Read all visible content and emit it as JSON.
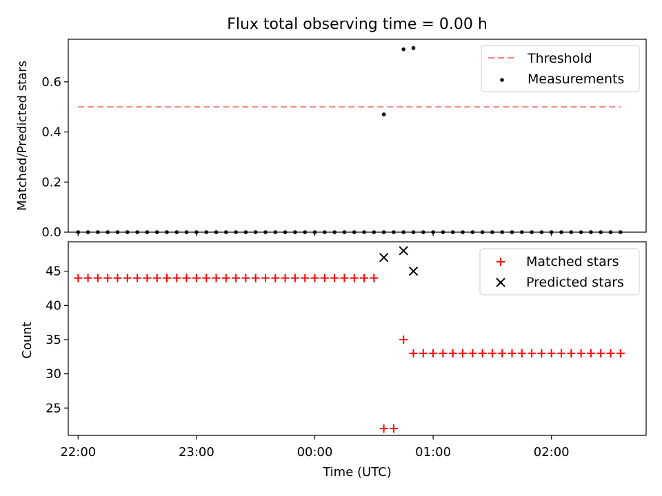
{
  "figure": {
    "title": "Flux total observing time = 0.00 h"
  },
  "chart_data": [
    {
      "type": "scatter",
      "title": "Flux total observing time = 0.00 h",
      "xlabel": "",
      "ylabel": "Matched/Predicted stars",
      "xlim": [
        "21:55",
        "02:48"
      ],
      "ylim": [
        0,
        0.77
      ],
      "yticks": [
        0.0,
        0.2,
        0.4,
        0.6
      ],
      "ytick_labels": [
        "0.0",
        "0.2",
        "0.4",
        "0.6"
      ],
      "legend_position": "upper right",
      "series": [
        {
          "name": "Threshold",
          "kind": "line",
          "style": "dashed",
          "color": "#ff7f7f",
          "x": [
            "22:00",
            "02:35"
          ],
          "y": [
            0.5,
            0.5
          ]
        },
        {
          "name": "Measurements",
          "kind": "scatter",
          "marker": "dot",
          "color": "#000000",
          "x": [
            "22:00",
            "22:05",
            "22:10",
            "22:15",
            "22:20",
            "22:25",
            "22:30",
            "22:35",
            "22:40",
            "22:45",
            "22:50",
            "22:55",
            "23:00",
            "23:05",
            "23:10",
            "23:15",
            "23:20",
            "23:25",
            "23:30",
            "23:35",
            "23:40",
            "23:45",
            "23:50",
            "23:55",
            "00:00",
            "00:05",
            "00:10",
            "00:15",
            "00:20",
            "00:25",
            "00:30",
            "00:35",
            "00:40",
            "00:45",
            "00:50",
            "00:55",
            "01:00",
            "01:05",
            "01:10",
            "01:15",
            "01:20",
            "01:25",
            "01:30",
            "01:35",
            "01:40",
            "01:45",
            "01:50",
            "01:55",
            "02:00",
            "02:05",
            "02:10",
            "02:15",
            "02:20",
            "02:25",
            "02:30",
            "02:35"
          ],
          "y": [
            0,
            0,
            0,
            0,
            0,
            0,
            0,
            0,
            0,
            0,
            0,
            0,
            0,
            0,
            0,
            0,
            0,
            0,
            0,
            0,
            0,
            0,
            0,
            0,
            0,
            0,
            0,
            0,
            0,
            0,
            0,
            0,
            0,
            0,
            0,
            0,
            0,
            0,
            0,
            0,
            0,
            0,
            0,
            0,
            0,
            0,
            0,
            0,
            0,
            0,
            0,
            0,
            0,
            0,
            0,
            0
          ],
          "extra_points": [
            {
              "x": "00:35",
              "y": 0.47
            },
            {
              "x": "00:45",
              "y": 0.73
            },
            {
              "x": "00:50",
              "y": 0.735
            }
          ]
        }
      ]
    },
    {
      "type": "scatter",
      "xlabel": "Time (UTC)",
      "ylabel": "Count",
      "xlim": [
        "21:55",
        "02:48"
      ],
      "ylim": [
        21,
        49.3
      ],
      "yticks": [
        25,
        30,
        35,
        40,
        45
      ],
      "ytick_labels": [
        "25",
        "30",
        "35",
        "40",
        "45"
      ],
      "xticks": [
        "22:00",
        "23:00",
        "00:00",
        "01:00",
        "02:00"
      ],
      "xtick_labels": [
        "22:00",
        "23:00",
        "00:00",
        "01:00",
        "02:00"
      ],
      "legend_position": "upper right",
      "series": [
        {
          "name": "Matched stars",
          "kind": "scatter",
          "marker": "plus",
          "color": "#ff0000",
          "points": [
            {
              "x": "22:00",
              "y": 44
            },
            {
              "x": "22:05",
              "y": 44
            },
            {
              "x": "22:10",
              "y": 44
            },
            {
              "x": "22:15",
              "y": 44
            },
            {
              "x": "22:20",
              "y": 44
            },
            {
              "x": "22:25",
              "y": 44
            },
            {
              "x": "22:30",
              "y": 44
            },
            {
              "x": "22:35",
              "y": 44
            },
            {
              "x": "22:40",
              "y": 44
            },
            {
              "x": "22:45",
              "y": 44
            },
            {
              "x": "22:50",
              "y": 44
            },
            {
              "x": "22:55",
              "y": 44
            },
            {
              "x": "23:00",
              "y": 44
            },
            {
              "x": "23:05",
              "y": 44
            },
            {
              "x": "23:10",
              "y": 44
            },
            {
              "x": "23:15",
              "y": 44
            },
            {
              "x": "23:20",
              "y": 44
            },
            {
              "x": "23:25",
              "y": 44
            },
            {
              "x": "23:30",
              "y": 44
            },
            {
              "x": "23:35",
              "y": 44
            },
            {
              "x": "23:40",
              "y": 44
            },
            {
              "x": "23:45",
              "y": 44
            },
            {
              "x": "23:50",
              "y": 44
            },
            {
              "x": "23:55",
              "y": 44
            },
            {
              "x": "00:00",
              "y": 44
            },
            {
              "x": "00:05",
              "y": 44
            },
            {
              "x": "00:10",
              "y": 44
            },
            {
              "x": "00:15",
              "y": 44
            },
            {
              "x": "00:20",
              "y": 44
            },
            {
              "x": "00:25",
              "y": 44
            },
            {
              "x": "00:30",
              "y": 44
            },
            {
              "x": "00:35",
              "y": 22
            },
            {
              "x": "00:40",
              "y": 22
            },
            {
              "x": "00:45",
              "y": 35
            },
            {
              "x": "00:50",
              "y": 33
            },
            {
              "x": "00:55",
              "y": 33
            },
            {
              "x": "01:00",
              "y": 33
            },
            {
              "x": "01:05",
              "y": 33
            },
            {
              "x": "01:10",
              "y": 33
            },
            {
              "x": "01:15",
              "y": 33
            },
            {
              "x": "01:20",
              "y": 33
            },
            {
              "x": "01:25",
              "y": 33
            },
            {
              "x": "01:30",
              "y": 33
            },
            {
              "x": "01:35",
              "y": 33
            },
            {
              "x": "01:40",
              "y": 33
            },
            {
              "x": "01:45",
              "y": 33
            },
            {
              "x": "01:50",
              "y": 33
            },
            {
              "x": "01:55",
              "y": 33
            },
            {
              "x": "02:00",
              "y": 33
            },
            {
              "x": "02:05",
              "y": 33
            },
            {
              "x": "02:10",
              "y": 33
            },
            {
              "x": "02:15",
              "y": 33
            },
            {
              "x": "02:20",
              "y": 33
            },
            {
              "x": "02:25",
              "y": 33
            },
            {
              "x": "02:30",
              "y": 33
            },
            {
              "x": "02:35",
              "y": 33
            }
          ]
        },
        {
          "name": "Predicted stars",
          "kind": "scatter",
          "marker": "x",
          "color": "#000000",
          "points": [
            {
              "x": "00:35",
              "y": 47
            },
            {
              "x": "00:45",
              "y": 48
            },
            {
              "x": "00:50",
              "y": 45
            }
          ]
        }
      ]
    }
  ]
}
